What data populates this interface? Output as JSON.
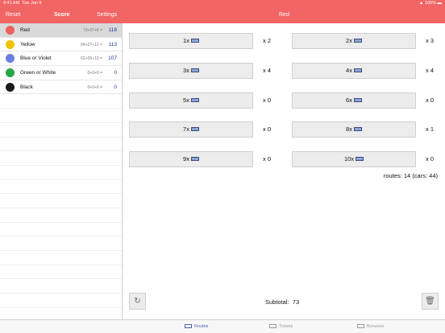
{
  "status": {
    "time": "9:41 AM",
    "date": "Tue Jan 9",
    "battery": "100%"
  },
  "nav": {
    "reset": "Reset",
    "score": "Score",
    "settings": "Settings",
    "title": "Red"
  },
  "players": [
    {
      "name": "Red",
      "formula": "73+37+8 =",
      "total": "118",
      "color": "#ee5f5f",
      "selected": true
    },
    {
      "name": "Yellow",
      "formula": "64+37+12 =",
      "total": "113",
      "color": "#f2c200"
    },
    {
      "name": "Blue or Violet",
      "formula": "62+35+10 =",
      "total": "107",
      "color": "#6a7fe0"
    },
    {
      "name": "Green or White",
      "formula": "0+0+0 =",
      "total": "0",
      "color": "#28a745"
    },
    {
      "name": "Black",
      "formula": "0+0+0 =",
      "total": "0",
      "color": "#1a1a1a"
    }
  ],
  "routes": [
    {
      "label": "1x",
      "count": "x 2"
    },
    {
      "label": "2x",
      "count": "x 3"
    },
    {
      "label": "3x",
      "count": "x 4"
    },
    {
      "label": "4x",
      "count": "x 4"
    },
    {
      "label": "5x",
      "count": "x 0"
    },
    {
      "label": "6x",
      "count": "x 0"
    },
    {
      "label": "7x",
      "count": "x 0"
    },
    {
      "label": "8x",
      "count": "x 1"
    },
    {
      "label": "9x",
      "count": "x 0"
    },
    {
      "label": "10x",
      "count": "x 0"
    }
  ],
  "routes_summary": "routes: 14 (cars: 44)",
  "subtotal_label": "Subtotal:",
  "subtotal_value": "73",
  "tabs": [
    {
      "label": "Routes",
      "active": true
    },
    {
      "label": "Tickets"
    },
    {
      "label": "Bonuses"
    }
  ],
  "icons": {
    "reset": "refresh-icon",
    "delete": "trash-icon",
    "train": "train-icon"
  }
}
